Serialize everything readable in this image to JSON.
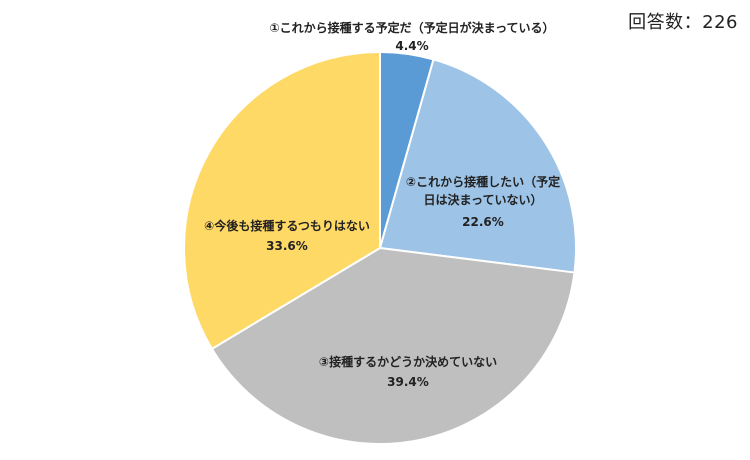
{
  "annotation": "回答数：226",
  "chart_data": {
    "type": "pie",
    "title": "",
    "start_angle_deg": 0,
    "direction": "clockwise",
    "slices": [
      {
        "label": "①これから接種する予定だ（予定日が決まっている）",
        "label_lines": [
          "①これから接種する予定だ（予定日が決まっている）"
        ],
        "value": 4.4,
        "value_text": "4.4%",
        "color": "#5B9BD5"
      },
      {
        "label": "②これから接種したい（予定日は決まっていない）",
        "label_lines": [
          "②これから接種したい（予定",
          "日は決まっていない）"
        ],
        "value": 22.6,
        "value_text": "22.6%",
        "color": "#9DC3E6"
      },
      {
        "label": "③接種するかどうか決めていない",
        "label_lines": [
          "③接種するかどうか決めていない"
        ],
        "value": 39.4,
        "value_text": "39.4%",
        "color": "#BFBFBF"
      },
      {
        "label": "④今後も接種するつもりはない",
        "label_lines": [
          "④今後も接種するつもりはない"
        ],
        "value": 33.6,
        "value_text": "33.6%",
        "color": "#FFD966"
      }
    ]
  }
}
